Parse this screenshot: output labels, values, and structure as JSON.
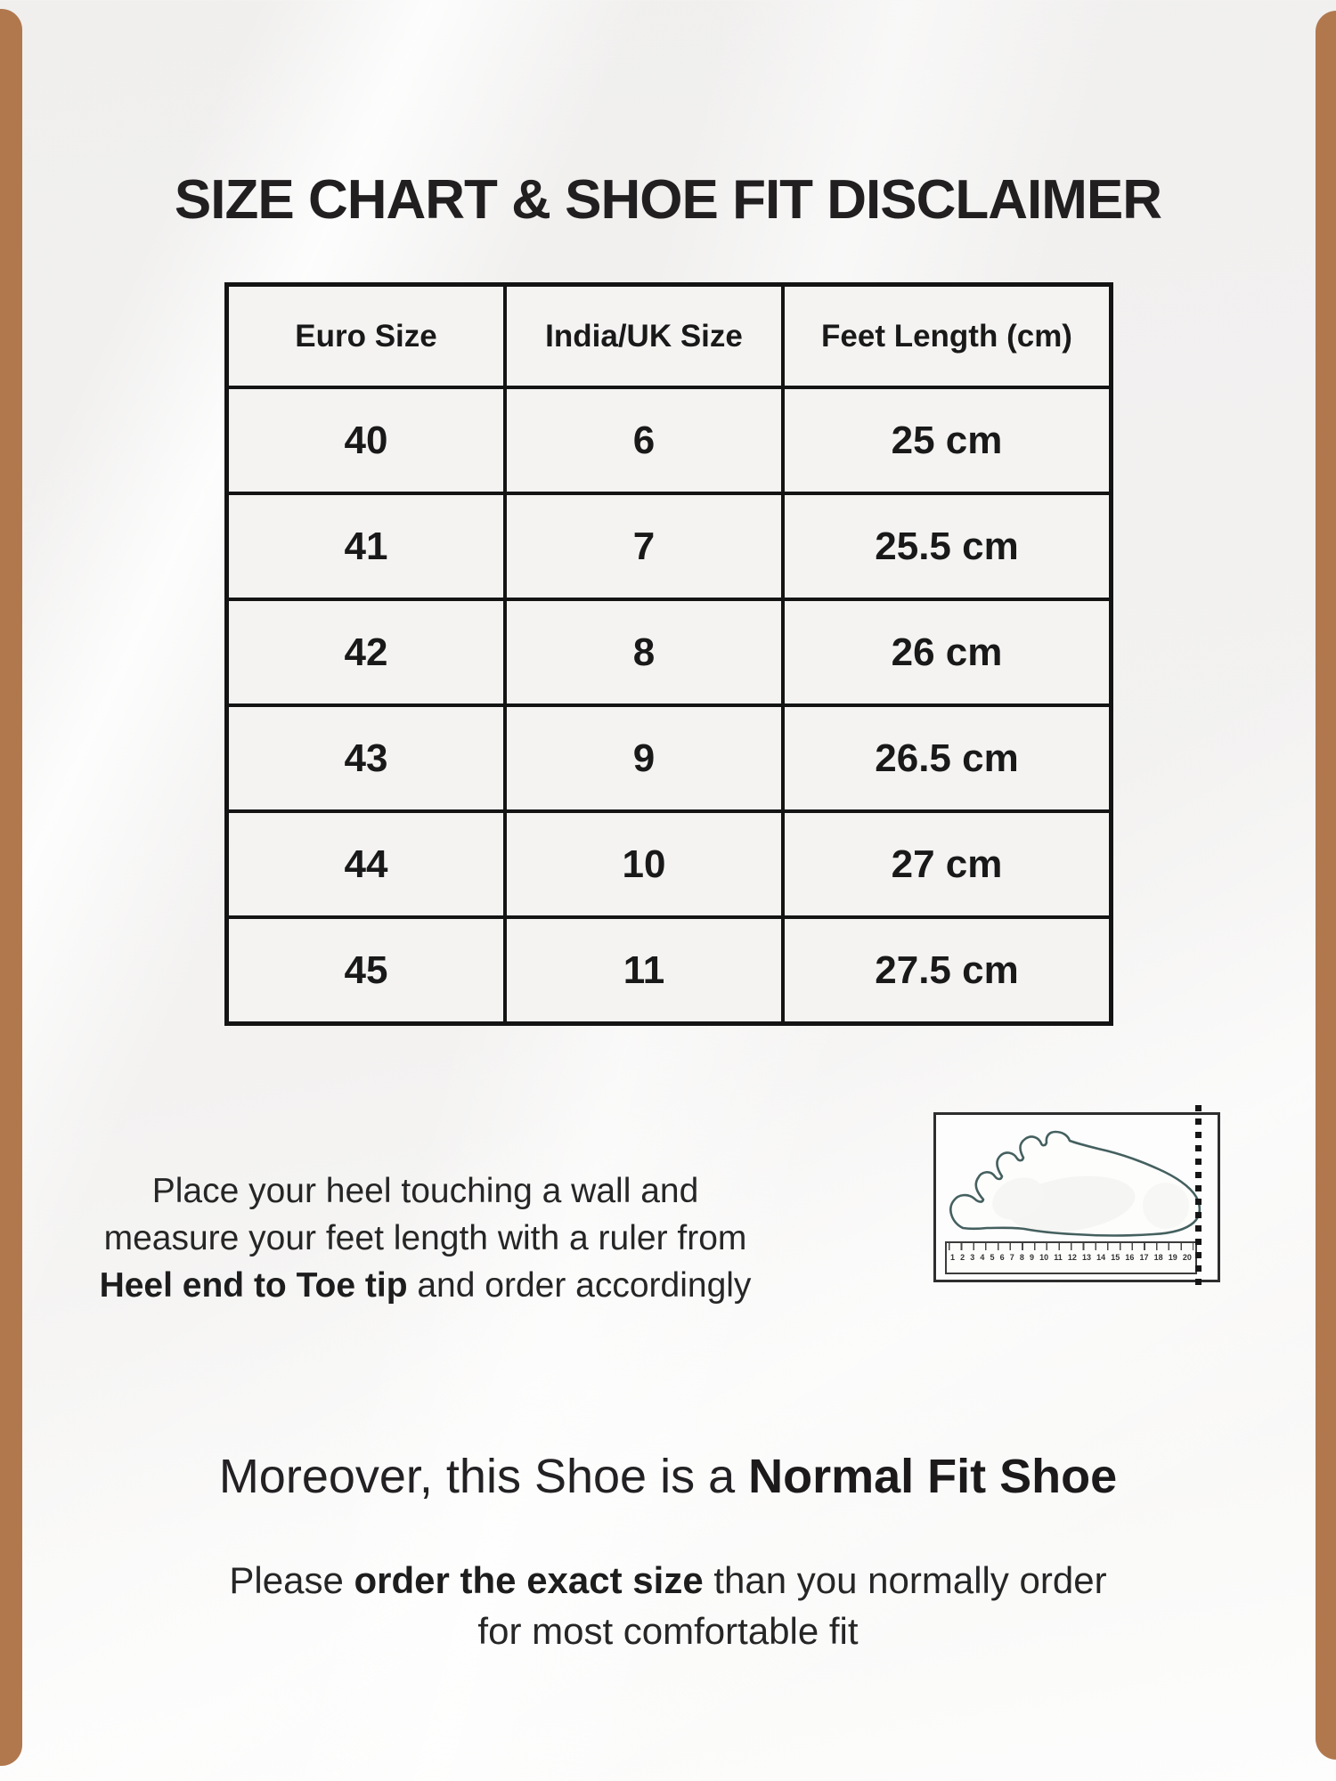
{
  "page": {
    "title": "SIZE CHART & SHOE FIT DISCLAIMER"
  },
  "size_table": {
    "columns": [
      "Euro Size",
      "India/UK Size",
      "Feet Length (cm)"
    ],
    "rows": [
      [
        "40",
        "6",
        "25 cm"
      ],
      [
        "41",
        "7",
        "25.5 cm"
      ],
      [
        "42",
        "8",
        "26 cm"
      ],
      [
        "43",
        "9",
        "26.5 cm"
      ],
      [
        "44",
        "10",
        "27 cm"
      ],
      [
        "45",
        "11",
        "27.5 cm"
      ]
    ]
  },
  "instructions": {
    "line1": "Place your heel touching a wall and",
    "line2": "measure your feet length with a ruler from",
    "line3_bold": "Heel end to Toe tip",
    "line3_rest": " and order accordingly"
  },
  "fit_note": {
    "prefix": "Moreover, this Shoe is a ",
    "bold": "Normal Fit Shoe"
  },
  "order_note": {
    "line1_prefix": "Please ",
    "line1_bold": "order the exact size",
    "line1_suffix": " than you normally order",
    "line2": "for most comfortable fit"
  },
  "illustration": {
    "ruler_numbers": [
      "1",
      "2",
      "3",
      "4",
      "5",
      "6",
      "7",
      "8",
      "9",
      "10",
      "11",
      "12",
      "13",
      "14",
      "15",
      "16",
      "17",
      "18",
      "19",
      "20"
    ]
  },
  "colors": {
    "accent_brown": "#b1784e",
    "table_line": "#141414",
    "text_ink": "#211f20",
    "foot_outline": "#44605f"
  }
}
